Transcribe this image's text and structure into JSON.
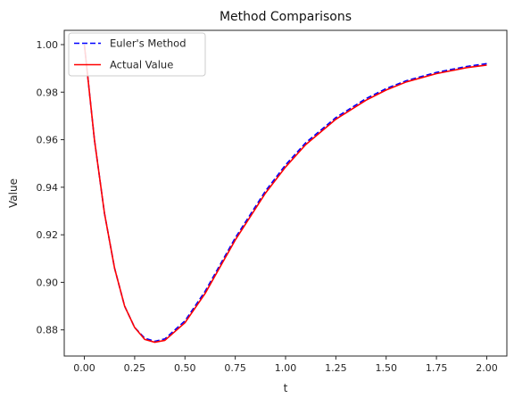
{
  "chart_data": {
    "type": "line",
    "title": "Method Comparisons",
    "xlabel": "t",
    "ylabel": "Value",
    "xlim": [
      -0.1,
      2.1
    ],
    "ylim": [
      0.869,
      1.006
    ],
    "xticks": [
      0.0,
      0.25,
      0.5,
      0.75,
      1.0,
      1.25,
      1.5,
      1.75,
      2.0
    ],
    "xtick_labels": [
      "0.00",
      "0.25",
      "0.50",
      "0.75",
      "1.00",
      "1.25",
      "1.50",
      "1.75",
      "2.00"
    ],
    "yticks": [
      0.88,
      0.9,
      0.92,
      0.94,
      0.96,
      0.98,
      1.0
    ],
    "ytick_labels": [
      "0.88",
      "0.90",
      "0.92",
      "0.94",
      "0.96",
      "0.98",
      "1.00"
    ],
    "grid": false,
    "legend": "top-left",
    "x": [
      0.0,
      0.05,
      0.1,
      0.15,
      0.2,
      0.25,
      0.3,
      0.35,
      0.4,
      0.5,
      0.6,
      0.75,
      0.9,
      1.0,
      1.1,
      1.25,
      1.4,
      1.5,
      1.6,
      1.75,
      1.9,
      2.0
    ],
    "series": [
      {
        "name": "Euler's Method",
        "color": "#0000ff",
        "style": "dashed",
        "values": [
          1.0,
          0.96,
          0.929,
          0.906,
          0.89,
          0.881,
          0.8765,
          0.8752,
          0.8762,
          0.8838,
          0.8962,
          0.9187,
          0.9384,
          0.9494,
          0.9587,
          0.9693,
          0.9773,
          0.9815,
          0.9848,
          0.9883,
          0.9908,
          0.992
        ]
      },
      {
        "name": "Actual Value",
        "color": "#ff0000",
        "style": "solid",
        "values": [
          1.0,
          0.96,
          0.929,
          0.906,
          0.89,
          0.881,
          0.876,
          0.8748,
          0.8756,
          0.883,
          0.8953,
          0.9178,
          0.9375,
          0.9485,
          0.9579,
          0.9686,
          0.9766,
          0.9809,
          0.9843,
          0.9878,
          0.9903,
          0.9914
        ]
      }
    ]
  }
}
